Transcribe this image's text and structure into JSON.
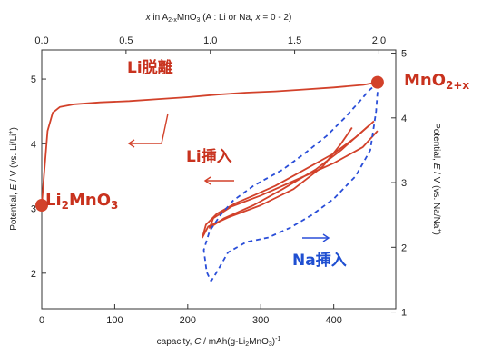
{
  "chart_data": {
    "type": "line",
    "title": "",
    "xlabel": "capacity, C / mAh(g-Li2MnO3)-1",
    "top_xlabel": "x in A2-xMnO3 (A : Li or Na, x = 0 - 2)",
    "ylabel_left": "Potential, E / V (vs. Li/Li+)",
    "ylabel_right": "Potential, E / V (vs. Na/Na+)",
    "xlim": [
      0,
      485
    ],
    "xticks": [
      0,
      100,
      200,
      300,
      400
    ],
    "top_xlim": [
      0,
      2.1
    ],
    "top_xticks": [
      "0.0",
      "0.5",
      "1.0",
      "1.5",
      "2.0"
    ],
    "ylim_left": [
      1.45,
      5.45
    ],
    "yticks_left": [
      2,
      3,
      4,
      5
    ],
    "ylim_right": [
      1.05,
      5.05
    ],
    "yticks_right": [
      1,
      2,
      3,
      4,
      5
    ],
    "series": [
      {
        "style": "solid",
        "color": "#d2412a",
        "axis": "left",
        "x": [
          0,
          3,
          8,
          15,
          25,
          45,
          80,
          120,
          160,
          200,
          240,
          280,
          320,
          360,
          400,
          440,
          460
        ],
        "y": [
          3.05,
          3.5,
          4.2,
          4.48,
          4.57,
          4.61,
          4.64,
          4.66,
          4.69,
          4.72,
          4.76,
          4.79,
          4.81,
          4.84,
          4.87,
          4.91,
          4.95
        ]
      },
      {
        "style": "solid",
        "color": "#d2412a",
        "axis": "left",
        "x": [
          455,
          430,
          400,
          360,
          320,
          290,
          265,
          240,
          225,
          220,
          228,
          255,
          300,
          345,
          385,
          410,
          425
        ],
        "y": [
          4.35,
          4.1,
          3.85,
          3.6,
          3.35,
          3.2,
          3.08,
          2.92,
          2.75,
          2.55,
          2.72,
          2.86,
          3.05,
          3.3,
          3.65,
          4.0,
          4.25
        ]
      },
      {
        "style": "solid",
        "color": "#d2412a",
        "axis": "left",
        "x": [
          460,
          440,
          400,
          350,
          300,
          260,
          235,
          230,
          250,
          290,
          330,
          375,
          410,
          435,
          450
        ],
        "y": [
          4.2,
          3.95,
          3.7,
          3.45,
          3.2,
          3.03,
          2.85,
          2.7,
          2.85,
          3.05,
          3.3,
          3.6,
          3.9,
          4.15,
          4.3
        ]
      },
      {
        "style": "dashed",
        "color": "#2a4ed8",
        "axis": "right",
        "x": [
          460,
          458,
          450,
          430,
          400,
          370,
          340,
          310,
          280,
          255,
          240,
          232,
          230,
          226,
          222,
          230,
          245,
          262,
          290,
          330,
          360,
          390,
          415,
          435,
          448,
          462,
          464
        ],
        "y": [
          4.4,
          4.1,
          3.5,
          3.1,
          2.75,
          2.5,
          2.3,
          2.15,
          2.08,
          1.92,
          1.62,
          1.48,
          1.52,
          1.62,
          1.96,
          2.25,
          2.5,
          2.72,
          2.95,
          3.2,
          3.45,
          3.72,
          4.0,
          4.25,
          4.42,
          4.56,
          4.62
        ]
      }
    ],
    "annotations": {
      "li_desorption": "Li脱離",
      "li_insertion": "Li挿入",
      "na_insertion": "Na挿入",
      "end_label_base": "MnO",
      "end_label_sub": "2+x",
      "start_label_base": "Li",
      "start_label_sub1": "2",
      "start_label_mid": "MnO",
      "start_label_sub2": "3"
    },
    "markers": [
      {
        "x": 0,
        "y": 3.05,
        "color": "#d2412a"
      },
      {
        "x": 460,
        "y": 4.95,
        "color": "#d2412a"
      }
    ],
    "colors": {
      "red": "#d2412a",
      "blue": "#2a4ed8",
      "label_red": "#c8321e",
      "label_blue": "#1f4fd1"
    }
  },
  "labels": {
    "xlabel_a": "capacity, ",
    "xlabel_c": "C",
    "xlabel_b": " / mAh(g-Li",
    "xlabel_sub": "2",
    "xlabel_c2": "MnO",
    "xlabel_sub2": "3",
    "xlabel_end": ")",
    "xlabel_sup": "-1",
    "top_a": "x",
    "top_b": " in A",
    "top_sub": "2-x",
    "top_c": "MnO",
    "top_sub2": "3",
    "top_d": " (A : Li or Na, ",
    "top_e": "x",
    "top_f": " = 0 - 2)",
    "yl_a": "Potential, ",
    "yl_b": "E",
    "yl_c": " / V (vs. Li/Li",
    "yl_sup": "+",
    "yl_d": ")",
    "yr_a": "Potential, ",
    "yr_b": "E",
    "yr_c": " / V (vs. Na/Na",
    "yr_sup": "+",
    "yr_d": ")"
  }
}
